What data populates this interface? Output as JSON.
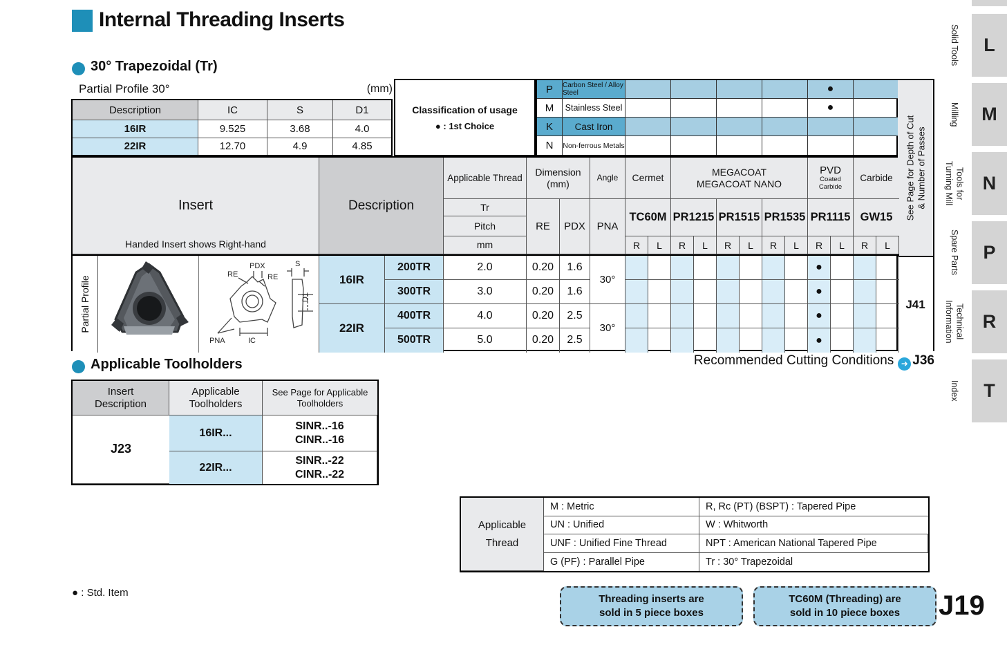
{
  "colors": {
    "accent": "#1e8fb8",
    "class_strong": "#5aabce",
    "class_light": "#a6cee2",
    "row_blue": "#c9e5f3",
    "stripe_blue": "#d9edf8",
    "note_blue": "#a9d2e7",
    "header_gray": "#e9eaec",
    "dark_gray": "#cdced0",
    "tab_gray": "#d4d4d4"
  },
  "header": {
    "title": "Internal Threading Inserts"
  },
  "section": {
    "heading": "30° Trapezoidal (Tr)"
  },
  "spec_table": {
    "note": "Partial Profile 30°",
    "unit": "(mm)",
    "headers": [
      "Description",
      "IC",
      "S",
      "D1"
    ],
    "rows": [
      {
        "description": "16IR",
        "ic": "9.525",
        "s": "3.68",
        "d1": "4.0"
      },
      {
        "description": "22IR",
        "ic": "12.70",
        "s": "4.9",
        "d1": "4.85"
      }
    ]
  },
  "classification": {
    "label": "Classification of usage",
    "legend": "● : 1st Choice",
    "rows": [
      {
        "code": "P",
        "material": "Carbon Steel / Alloy Steel",
        "marks": [
          "",
          "",
          "",
          "",
          "●",
          ""
        ]
      },
      {
        "code": "M",
        "material": "Stainless Steel",
        "marks": [
          "",
          "",
          "",
          "",
          "●",
          ""
        ]
      },
      {
        "code": "K",
        "material": "Cast Iron",
        "marks": [
          "",
          "",
          "",
          "",
          "",
          ""
        ]
      },
      {
        "code": "N",
        "material": "Non-ferrous Metals",
        "marks": [
          "",
          "",
          "",
          "",
          "",
          ""
        ]
      }
    ]
  },
  "main_table": {
    "insert_header": "Insert",
    "insert_caption": "Handed Insert shows Right-hand",
    "profile_label": "Partial Profile",
    "description_header": "Description",
    "col_applicable_thread": "Applicable Thread",
    "col_tr": "Tr",
    "col_pitch": "Pitch",
    "col_mm": "mm",
    "col_dimension": "Dimension (mm)",
    "col_re": "RE",
    "col_pdx": "PDX",
    "col_angle": "Angle",
    "col_pna": "PNA",
    "group_cermet": "Cermet",
    "group_megacoat_line1": "MEGACOAT",
    "group_megacoat_line2": "MEGACOAT NANO",
    "group_pvd_line1": "PVD",
    "group_pvd_line2": "Coated Carbide",
    "group_carbide": "Carbide",
    "grades": [
      "TC60M",
      "PR1215",
      "PR1515",
      "PR1535",
      "PR1115",
      "GW15"
    ],
    "rl_cells": [
      "R",
      "L",
      "R",
      "L",
      "R",
      "L",
      "R",
      "L",
      "R",
      "L",
      "R",
      "L"
    ],
    "see_page_line1": "See Page for Depth of Cut",
    "see_page_line2": "& Number of Passes",
    "see_page_value": "J41",
    "diagram": {
      "re1": "RE",
      "pdx": "PDX",
      "s": "S",
      "re2": "RE",
      "pna": "PNA",
      "ic": "IC",
      "d1": "D1"
    },
    "rows": [
      {
        "desc": "16IR",
        "code": "200TR",
        "pitch": "2.0",
        "re": "0.20",
        "pdx": "1.6",
        "angle": "30°",
        "marks": [
          "",
          "",
          "",
          "",
          "",
          "",
          "",
          "",
          "●",
          "",
          "",
          ""
        ]
      },
      {
        "desc": "",
        "code": "300TR",
        "pitch": "3.0",
        "re": "0.20",
        "pdx": "1.6",
        "angle": "",
        "marks": [
          "",
          "",
          "",
          "",
          "",
          "",
          "",
          "",
          "●",
          "",
          "",
          ""
        ]
      },
      {
        "desc": "22IR",
        "code": "400TR",
        "pitch": "4.0",
        "re": "0.20",
        "pdx": "2.5",
        "angle": "30°",
        "marks": [
          "",
          "",
          "",
          "",
          "",
          "",
          "",
          "",
          "●",
          "",
          "",
          ""
        ]
      },
      {
        "desc": "",
        "code": "500TR",
        "pitch": "5.0",
        "re": "0.20",
        "pdx": "2.5",
        "angle": "",
        "marks": [
          "",
          "",
          "",
          "",
          "",
          "",
          "",
          "",
          "●",
          "",
          "",
          ""
        ]
      }
    ]
  },
  "cutting": {
    "label": "Recommended Cutting Conditions",
    "icon_glyph": "➜",
    "page": "J36"
  },
  "toolholders": {
    "heading": "Applicable Toolholders",
    "headers": [
      "Insert Description",
      "Applicable Toolholders",
      "See Page for Applicable Toolholders"
    ],
    "rows": [
      {
        "desc": "16IR...",
        "holder1": "SINR..-16",
        "holder2": "CINR..-16"
      },
      {
        "desc": "22IR...",
        "holder1": "SINR..-22",
        "holder2": "CINR..-22"
      }
    ],
    "page": "J23"
  },
  "thread_legend": {
    "label_line1": "Applicable",
    "label_line2": "Thread",
    "rows": [
      {
        "left": "M : Metric",
        "right": "R, Rc (PT) (BSPT) : Tapered Pipe"
      },
      {
        "left": "UN : Unified",
        "right": "W : Whitworth"
      },
      {
        "left": "UNF : Unified Fine Thread",
        "right": "NPT : American National Tapered Pipe"
      },
      {
        "left": "G (PF) : Parallel Pipe",
        "right": "Tr : 30° Trapezoidal"
      }
    ]
  },
  "notes": {
    "std_item": "● : Std. Item",
    "box1_line1": "Threading inserts are",
    "box1_line2": "sold in 5 piece boxes",
    "box2_line1": "TC60M (Threading) are",
    "box2_line2": "sold in 10 piece boxes",
    "page_number": "J19"
  },
  "sidebar": {
    "items": [
      {
        "label": "Solid Tools",
        "tab": "L"
      },
      {
        "label": "Milling",
        "tab": "M"
      },
      {
        "label": "Tools for Turning Mill",
        "tab": "N"
      },
      {
        "label": "Spare Parts",
        "tab": "P"
      },
      {
        "label": "Technical Information",
        "tab": "R"
      },
      {
        "label": "Index",
        "tab": "T"
      }
    ]
  }
}
